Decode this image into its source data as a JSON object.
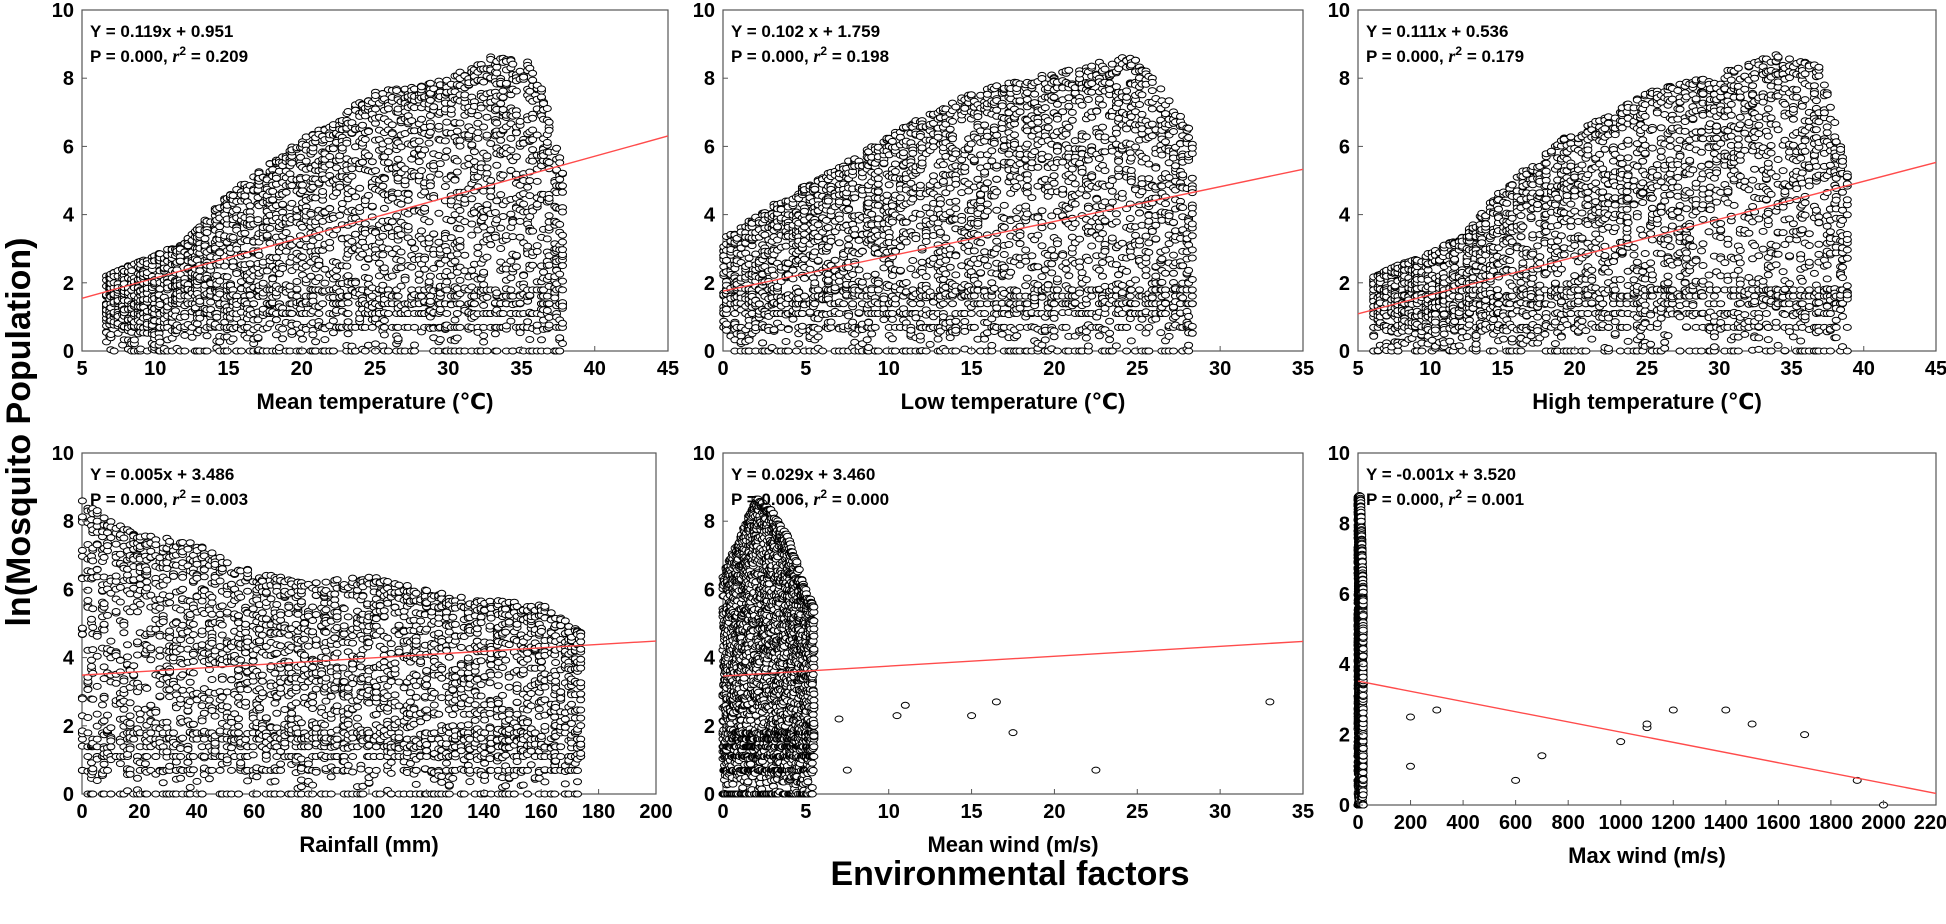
{
  "figure": {
    "y_label": "ln(Mosquito Population)",
    "x_label": "Environmental factors"
  },
  "chart_data": [
    {
      "type": "scatter",
      "xlabel": "Mean temperature (℃)",
      "ylabel": "ln(Mosquito Population)",
      "xlim": [
        5,
        45
      ],
      "ylim": [
        0,
        10
      ],
      "xticks": [
        5,
        10,
        15,
        20,
        25,
        30,
        35,
        40,
        45
      ],
      "yticks": [
        0,
        2,
        4,
        6,
        8,
        10
      ],
      "eq_line": "Y = 0.119x + 0.951",
      "stats": {
        "p_text": "P = 0.000,",
        "r2_value": "0.209"
      },
      "regression": {
        "slope": 0.119,
        "intercept": 0.951,
        "color": "#ff4b4b"
      },
      "cloud": {
        "x_min": 6.5,
        "x_max": 38,
        "edge": [
          [
            6.5,
            2.2
          ],
          [
            12,
            3.2
          ],
          [
            15,
            4.6
          ],
          [
            20,
            6.2
          ],
          [
            25,
            7.6
          ],
          [
            30,
            8.0
          ],
          [
            33,
            8.7
          ],
          [
            36,
            8.5
          ],
          [
            38,
            5.0
          ]
        ]
      },
      "outliers": []
    },
    {
      "type": "scatter",
      "xlabel": "Low temperature (℃)",
      "ylabel": "ln(Mosquito Population)",
      "xlim": [
        0,
        35
      ],
      "ylim": [
        0,
        10
      ],
      "xticks": [
        0,
        5,
        10,
        15,
        20,
        25,
        30,
        35
      ],
      "yticks": [
        0,
        2,
        4,
        6,
        8,
        10
      ],
      "eq_line": "Y = 0.102 x + 1.759",
      "stats": {
        "p_text": "P = 0.000,",
        "r2_value": "0.198"
      },
      "regression": {
        "slope": 0.102,
        "intercept": 1.759,
        "color": "#ff4b4b"
      },
      "cloud": {
        "x_min": 0,
        "x_max": 28.5,
        "edge": [
          [
            0,
            3.3
          ],
          [
            4,
            4.6
          ],
          [
            7,
            5.4
          ],
          [
            11,
            6.6
          ],
          [
            15,
            7.6
          ],
          [
            20,
            8.2
          ],
          [
            25,
            8.7
          ],
          [
            28.5,
            6.3
          ]
        ]
      },
      "outliers": []
    },
    {
      "type": "scatter",
      "xlabel": "High temperature (℃)",
      "ylabel": "ln(Mosquito Population)",
      "xlim": [
        5,
        45
      ],
      "ylim": [
        0,
        10
      ],
      "xticks": [
        5,
        10,
        15,
        20,
        25,
        30,
        35,
        40,
        45
      ],
      "yticks": [
        0,
        2,
        4,
        6,
        8,
        10
      ],
      "eq_line": "Y = 0.111x + 0.536",
      "stats": {
        "p_text": "P = 0.000,",
        "r2_value": "0.179"
      },
      "regression": {
        "slope": 0.111,
        "intercept": 0.536,
        "color": "#ff4b4b"
      },
      "cloud": {
        "x_min": 6,
        "x_max": 39,
        "edge": [
          [
            6,
            2.2
          ],
          [
            12,
            3.3
          ],
          [
            15,
            4.8
          ],
          [
            19,
            6.2
          ],
          [
            25,
            7.6
          ],
          [
            30,
            8.2
          ],
          [
            34,
            8.7
          ],
          [
            37,
            8.4
          ],
          [
            39,
            5.0
          ]
        ]
      },
      "outliers": []
    },
    {
      "type": "scatter",
      "xlabel": "Rainfall (mm)",
      "ylabel": "ln(Mosquito Population)",
      "xlim": [
        0,
        200
      ],
      "ylim": [
        0,
        10
      ],
      "xticks": [
        0,
        20,
        40,
        60,
        80,
        100,
        120,
        140,
        160,
        180,
        200
      ],
      "yticks": [
        0,
        2,
        4,
        6,
        8,
        10
      ],
      "eq_line": "Y = 0.005x + 3.486",
      "stats": {
        "p_text": "P = 0.000,",
        "r2_value": "0.003"
      },
      "regression": {
        "slope": 0.005,
        "intercept": 3.486,
        "color": "#ff4b4b"
      },
      "cloud": {
        "x_min": 0,
        "x_max": 175,
        "edge": [
          [
            0,
            8.7
          ],
          [
            10,
            8.0
          ],
          [
            20,
            7.6
          ],
          [
            40,
            7.4
          ],
          [
            60,
            6.5
          ],
          [
            80,
            6.2
          ],
          [
            100,
            6.4
          ],
          [
            130,
            5.8
          ],
          [
            160,
            5.6
          ],
          [
            175,
            4.7
          ]
        ]
      },
      "outliers": []
    },
    {
      "type": "scatter",
      "xlabel": "Mean wind (m/s)",
      "ylabel": "ln(Mosquito Population)",
      "xlim": [
        0,
        35
      ],
      "ylim": [
        0,
        10
      ],
      "xticks": [
        0,
        5,
        10,
        15,
        20,
        25,
        30,
        35
      ],
      "yticks": [
        0,
        2,
        4,
        6,
        8,
        10
      ],
      "eq_line": "Y = 0.029x + 3.460",
      "stats": {
        "p_text": "P = 0.006,",
        "r2_value": "0.000"
      },
      "regression": {
        "slope": 0.029,
        "intercept": 3.46,
        "color": "#ff4b4b"
      },
      "cloud": {
        "x_min": 0,
        "x_max": 5.5,
        "edge": [
          [
            0,
            6.5
          ],
          [
            1,
            7.5
          ],
          [
            2,
            8.7
          ],
          [
            3,
            8.3
          ],
          [
            4,
            7.5
          ],
          [
            5,
            6.0
          ],
          [
            5.5,
            5.5
          ]
        ]
      },
      "outliers": [
        [
          7.5,
          0.7
        ],
        [
          7,
          2.2
        ],
        [
          10.5,
          2.3
        ],
        [
          11,
          2.6
        ],
        [
          15,
          2.3
        ],
        [
          16.5,
          2.7
        ],
        [
          17.5,
          1.8
        ],
        [
          22.5,
          0.7
        ],
        [
          33,
          2.7
        ]
      ]
    },
    {
      "type": "scatter",
      "xlabel": "Max wind (m/s)",
      "ylabel": "ln(Mosquito Population)",
      "xlim": [
        0,
        2200
      ],
      "ylim": [
        0,
        10
      ],
      "xticks": [
        0,
        200,
        400,
        600,
        800,
        1000,
        1200,
        1400,
        1600,
        1800,
        2000,
        2200
      ],
      "yticks": [
        0,
        2,
        4,
        6,
        8,
        10
      ],
      "eq_line": "Y = -0.001x + 3.520",
      "stats": {
        "p_text": "P = 0.000,",
        "r2_value": "0.001"
      },
      "regression": {
        "slope": -0.00145,
        "intercept": 3.52,
        "color": "#ff4b4b"
      },
      "cloud": {
        "x_min": 0,
        "x_max": 20,
        "edge": [
          [
            0,
            8.8
          ],
          [
            10,
            8.8
          ],
          [
            20,
            6.0
          ]
        ]
      },
      "outliers": [
        [
          200,
          2.5
        ],
        [
          200,
          1.1
        ],
        [
          300,
          2.7
        ],
        [
          600,
          0.7
        ],
        [
          700,
          1.4
        ],
        [
          1000,
          1.8
        ],
        [
          1100,
          2.2
        ],
        [
          1100,
          2.3
        ],
        [
          1200,
          2.7
        ],
        [
          1400,
          2.7
        ],
        [
          1500,
          2.3
        ],
        [
          1700,
          2.0
        ],
        [
          1900,
          0.7
        ],
        [
          2000,
          0.0
        ]
      ]
    }
  ]
}
